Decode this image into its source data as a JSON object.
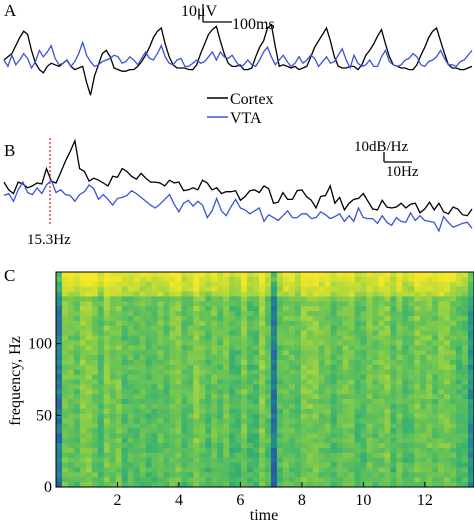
{
  "panels": {
    "a": {
      "letter": "A"
    },
    "b": {
      "letter": "B"
    },
    "c": {
      "letter": "C"
    }
  },
  "scalebars": {
    "a": {
      "vertical_label": "10μV",
      "horizontal_label": "100ms"
    },
    "b": {
      "vertical_label": "10dB/Hz",
      "horizontal_label": "10Hz"
    }
  },
  "legend": [
    {
      "label": "Cortex",
      "color": "#000000"
    },
    {
      "label": "VTA",
      "color": "#3b53d6"
    }
  ],
  "peak_annotation": {
    "label": "15.3Hz",
    "color": "#d42020"
  },
  "chart_data": [
    {
      "type": "line",
      "panel": "A",
      "x": [
        0,
        1,
        2,
        3,
        4,
        5,
        6,
        7,
        8,
        9,
        10,
        11,
        12,
        13,
        14,
        15,
        16,
        17,
        18,
        19,
        20,
        21,
        22,
        23,
        24,
        25,
        26,
        27,
        28,
        29,
        30,
        31,
        32,
        33,
        34,
        35,
        36,
        37,
        38,
        39,
        40,
        41,
        42,
        43,
        44,
        45,
        46,
        47,
        48,
        49,
        50,
        51,
        52,
        53,
        54,
        55,
        56,
        57,
        58,
        59,
        60,
        61,
        62,
        63,
        64,
        65,
        66,
        67,
        68,
        69,
        70,
        71,
        72,
        73,
        74,
        75,
        76,
        77,
        78,
        79,
        80,
        81,
        82,
        83,
        84,
        85,
        86,
        87,
        88,
        89,
        90,
        91,
        92,
        93,
        94,
        95,
        96,
        97,
        98,
        99,
        100,
        101,
        102,
        103,
        104,
        105,
        106,
        107,
        108,
        109,
        110,
        111,
        112,
        113,
        114,
        115,
        116,
        117,
        118,
        119
      ],
      "series": [
        {
          "name": "Cortex",
          "color": "#000000",
          "values": [
            0,
            2,
            4,
            9,
            14,
            18,
            16,
            6,
            -2,
            -6,
            -8,
            -4,
            -2,
            -3,
            -4,
            -2,
            0,
            -4,
            -6,
            -5,
            -4,
            -14,
            -22,
            -10,
            -3,
            4,
            6,
            2,
            -5,
            -6,
            -7,
            -7,
            -6,
            -6,
            -4,
            -1,
            3,
            8,
            14,
            18,
            20,
            10,
            2,
            -3,
            -5,
            -5,
            -5,
            -6,
            -6,
            -3,
            4,
            10,
            16,
            19,
            21,
            12,
            4,
            -2,
            -4,
            -4,
            -3,
            -6,
            -6,
            -5,
            2,
            8,
            12,
            20,
            22,
            8,
            -4,
            -3,
            -4,
            -5,
            -4,
            -6,
            -5,
            -4,
            2,
            8,
            12,
            16,
            20,
            12,
            2,
            -4,
            -5,
            -5,
            -4,
            -4,
            -6,
            -3,
            3,
            6,
            10,
            15,
            19,
            10,
            2,
            -3,
            -4,
            -5,
            -5,
            -6,
            -6,
            -3,
            3,
            8,
            14,
            18,
            20,
            12,
            4,
            -3,
            -5,
            -5,
            -6,
            -6,
            -5,
            -4
          ]
        },
        {
          "name": "VTA",
          "color": "#3b53d6",
          "values": [
            0,
            -4,
            3,
            -3,
            0,
            4,
            1,
            -5,
            -1,
            6,
            2,
            5,
            9,
            1,
            -3,
            -2,
            0,
            -4,
            -1,
            4,
            11,
            3,
            -1,
            -4,
            -3,
            -1,
            0,
            1,
            3,
            2,
            -2,
            -1,
            2,
            0,
            -3,
            1,
            5,
            1,
            0,
            4,
            9,
            2,
            -2,
            -3,
            0,
            1,
            -4,
            -4,
            -2,
            0,
            -2,
            -1,
            2,
            5,
            0,
            5,
            2,
            1,
            3,
            -1,
            -4,
            -3,
            0,
            -3,
            -4,
            0,
            5,
            8,
            2,
            -3,
            0,
            3,
            -1,
            -4,
            -2,
            2,
            -2,
            0,
            3,
            1,
            -4,
            -1,
            2,
            -2,
            -1,
            3,
            7,
            0,
            -5,
            3,
            -2,
            -4,
            -3,
            0,
            -4,
            -4,
            2,
            6,
            -1,
            -3,
            -4,
            -3,
            0,
            1,
            4,
            2,
            -3,
            -4,
            -1,
            0,
            2,
            6,
            1,
            -3,
            -3,
            -4,
            -1,
            0,
            3,
            6
          ]
        }
      ]
    },
    {
      "type": "line",
      "panel": "B",
      "peak_x": 15.3,
      "x": [
        0,
        1,
        2,
        3,
        4,
        5,
        6,
        7,
        8,
        9,
        10,
        11,
        12,
        13,
        14,
        15,
        16,
        17,
        18,
        19,
        20,
        21,
        22,
        23,
        24,
        25,
        26,
        27,
        28,
        29,
        30,
        31,
        32,
        33,
        34,
        35,
        36,
        37,
        38,
        39,
        40,
        41,
        42,
        43,
        44,
        45,
        46,
        47,
        48,
        49,
        50,
        51,
        52,
        53,
        54,
        55,
        56,
        57,
        58,
        59,
        60,
        61,
        62,
        63,
        64,
        65,
        66,
        67,
        68,
        69,
        70,
        71,
        72,
        73,
        74,
        75,
        76,
        77,
        78,
        79,
        80,
        81,
        82,
        83,
        84,
        85,
        86,
        87,
        88,
        89,
        90,
        91,
        92,
        93,
        94,
        95,
        96,
        97,
        98,
        99
      ],
      "series": [
        {
          "name": "Cortex",
          "color": "#000000",
          "values": [
            52,
            44,
            40,
            52,
            50,
            46,
            48,
            51,
            50,
            66,
            53,
            51,
            62,
            74,
            84,
            95,
            66,
            63,
            53,
            56,
            54,
            51,
            48,
            58,
            57,
            66,
            63,
            58,
            55,
            61,
            56,
            52,
            52,
            51,
            48,
            54,
            51,
            52,
            43,
            44,
            46,
            44,
            54,
            51,
            44,
            46,
            40,
            42,
            42,
            43,
            33,
            37,
            43,
            44,
            41,
            48,
            45,
            30,
            31,
            41,
            34,
            34,
            43,
            44,
            37,
            33,
            25,
            37,
            38,
            48,
            30,
            36,
            23,
            30,
            34,
            35,
            40,
            32,
            24,
            23,
            33,
            26,
            25,
            26,
            30,
            25,
            29,
            30,
            20,
            24,
            31,
            23,
            30,
            21,
            19,
            26,
            24,
            18,
            17,
            24
          ]
        },
        {
          "name": "VTA",
          "color": "#3b53d6",
          "values": [
            38,
            40,
            32,
            44,
            52,
            41,
            39,
            46,
            40,
            49,
            54,
            41,
            44,
            39,
            38,
            32,
            39,
            42,
            49,
            45,
            34,
            39,
            34,
            28,
            35,
            36,
            38,
            43,
            40,
            36,
            32,
            28,
            25,
            29,
            34,
            39,
            29,
            21,
            30,
            33,
            27,
            32,
            28,
            15,
            22,
            35,
            22,
            17,
            26,
            34,
            25,
            23,
            19,
            22,
            25,
            11,
            18,
            15,
            12,
            17,
            22,
            15,
            15,
            19,
            19,
            14,
            15,
            21,
            18,
            14,
            16,
            19,
            11,
            17,
            11,
            25,
            15,
            14,
            14,
            9,
            17,
            10,
            7,
            15,
            11,
            10,
            20,
            12,
            17,
            12,
            11,
            10,
            1,
            16,
            10,
            5,
            7,
            9,
            10,
            4
          ]
        }
      ]
    },
    {
      "type": "heatmap",
      "panel": "C",
      "xlabel": "time",
      "ylabel": "frequency, Hz",
      "x_range": [
        0,
        13.6
      ],
      "y_range": [
        0,
        150
      ],
      "x_ticks": [
        2,
        4,
        6,
        8,
        10,
        12
      ],
      "y_ticks": [
        0,
        50,
        100
      ],
      "colormap": "viridis-like (blue to green to yellow)",
      "dark_time_columns": [
        0,
        7,
        13.5
      ]
    }
  ]
}
